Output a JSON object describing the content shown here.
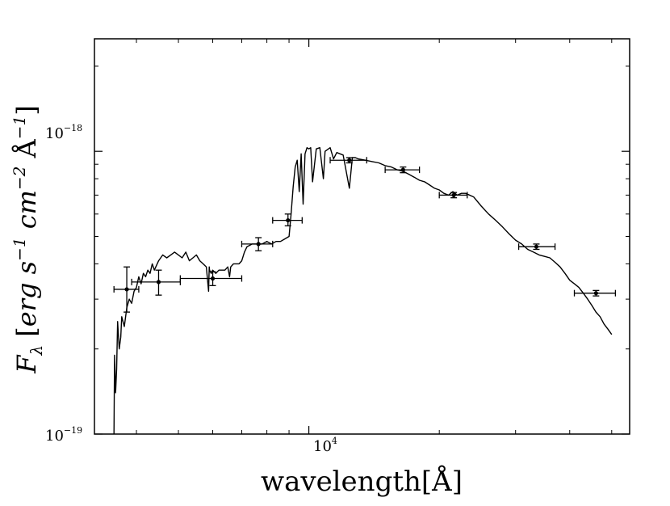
{
  "chart_data": {
    "type": "line",
    "xscale": "log",
    "yscale": "log",
    "xlim": [
      3200,
      55000
    ],
    "ylim": [
      1e-19,
      2.5e-18
    ],
    "xlabel": "wavelength[Å]",
    "ylabel": "F_λ [erg s^{-1} cm^{-2} Å^{-1}]",
    "ylabel_parts": {
      "F": "F",
      "lambda": "λ",
      "open": " [",
      "erg": "erg s",
      "exp1": "−1",
      "cm": " cm",
      "exp2": "−2",
      "A": " Å",
      "exp3": "−1",
      "close": "]"
    },
    "xticks": [
      {
        "base": "10",
        "exp": "4",
        "value": 10000
      }
    ],
    "yticks": [
      {
        "base": "10",
        "exp": "−18",
        "value": 1e-18
      },
      {
        "base": "10",
        "exp": "−19",
        "value": 1e-19
      }
    ],
    "series": [
      {
        "kind": "model-spectrum",
        "x": [
          3550,
          3560,
          3580,
          3600,
          3620,
          3650,
          3680,
          3700,
          3750,
          3800,
          3850,
          3900,
          3950,
          4000,
          4050,
          4100,
          4150,
          4200,
          4250,
          4300,
          4350,
          4400,
          4500,
          4600,
          4700,
          4800,
          4900,
          5000,
          5100,
          5200,
          5300,
          5400,
          5500,
          5600,
          5700,
          5800,
          5870,
          5890,
          5900,
          5950,
          6000,
          6100,
          6200,
          6300,
          6400,
          6500,
          6562,
          6600,
          6700,
          6800,
          6900,
          7000,
          7100,
          7200,
          7400,
          7600,
          7800,
          8000,
          8200,
          8400,
          8600,
          8800,
          9000,
          9100,
          9200,
          9300,
          9400,
          9500,
          9600,
          9700,
          9800,
          9900,
          10000,
          10100,
          10200,
          10400,
          10600,
          10800,
          10900,
          11000,
          11200,
          11400,
          11600,
          11800,
          12000,
          12400,
          12600,
          12800,
          13000,
          13500,
          14000,
          14500,
          15000,
          15500,
          16000,
          16500,
          17000,
          17500,
          18000,
          18500,
          19000,
          19500,
          20000,
          20500,
          21000,
          21500,
          22000,
          22500,
          23000,
          24000,
          25000,
          26000,
          27000,
          28000,
          29000,
          30000,
          31000,
          32000,
          33000,
          34000,
          35000,
          36000,
          37000,
          38000,
          39000,
          40000,
          41000,
          42000,
          43000,
          44000,
          45000,
          46000,
          47000,
          48000,
          49000,
          50000
        ],
        "y": [
          9.5e-20,
          1.9e-19,
          1.4e-19,
          1.7e-19,
          2.5e-19,
          2e-19,
          2.2e-19,
          2.6e-19,
          2.4e-19,
          2.8e-19,
          3e-19,
          2.9e-19,
          3.2e-19,
          3.3e-19,
          3.6e-19,
          3.4e-19,
          3.7e-19,
          3.6e-19,
          3.8e-19,
          3.7e-19,
          4e-19,
          3.8e-19,
          4.1e-19,
          4.3e-19,
          4.2e-19,
          4.3e-19,
          4.4e-19,
          4.3e-19,
          4.2e-19,
          4.4e-19,
          4.1e-19,
          4.2e-19,
          4.3e-19,
          4.1e-19,
          4e-19,
          3.9e-19,
          3.2e-19,
          3.9e-19,
          3.8e-19,
          3.7e-19,
          3.8e-19,
          3.7e-19,
          3.8e-19,
          3.8e-19,
          3.8e-19,
          3.9e-19,
          3.6e-19,
          3.9e-19,
          4e-19,
          4e-19,
          4e-19,
          4.1e-19,
          4.4e-19,
          4.6e-19,
          4.7e-19,
          4.7e-19,
          4.7e-19,
          4.8e-19,
          4.7e-19,
          4.8e-19,
          4.8e-19,
          4.9e-19,
          5e-19,
          6e-19,
          7.5e-19,
          8.8e-19,
          9.3e-19,
          7.2e-19,
          9.8e-19,
          6.5e-19,
          9.8e-19,
          1.03e-18,
          1.02e-18,
          1.03e-18,
          7.8e-19,
          1.02e-18,
          1.03e-18,
          8e-19,
          1e-18,
          1.01e-18,
          1.03e-18,
          9.4e-19,
          9.9e-19,
          9.8e-19,
          9.7e-19,
          7.4e-19,
          9.5e-19,
          9.5e-19,
          9.4e-19,
          9.3e-19,
          9.2e-19,
          9.1e-19,
          8.9e-19,
          8.8e-19,
          8.6e-19,
          8.5e-19,
          8.3e-19,
          8.1e-19,
          7.9e-19,
          7.8e-19,
          7.6e-19,
          7.4e-19,
          7.3e-19,
          7.1e-19,
          7e-19,
          7.2e-19,
          7e-19,
          7.1e-19,
          7.1e-19,
          6.9e-19,
          6.4e-19,
          6e-19,
          5.7e-19,
          5.4e-19,
          5.1e-19,
          4.85e-19,
          4.7e-19,
          4.5e-19,
          4.4e-19,
          4.3e-19,
          4.25e-19,
          4.2e-19,
          4.05e-19,
          3.9e-19,
          3.7e-19,
          3.5e-19,
          3.4e-19,
          3.3e-19,
          3.15e-19,
          3e-19,
          2.85e-19,
          2.7e-19,
          2.6e-19,
          2.45e-19,
          2.35e-19,
          2.25e-19
        ]
      },
      {
        "kind": "photometry",
        "points": [
          {
            "x": 3800,
            "y": 3.25e-19,
            "xerr": [
              3550,
              4050
            ],
            "yerr": [
              2.7e-19,
              3.9e-19
            ]
          },
          {
            "x": 4500,
            "y": 3.45e-19,
            "xerr": [
              3900,
              5050
            ],
            "yerr": [
              3.1e-19,
              3.8e-19
            ]
          },
          {
            "x": 6000,
            "y": 3.55e-19,
            "xerr": [
              5050,
              7000
            ],
            "yerr": [
              3.35e-19,
              3.75e-19
            ]
          },
          {
            "x": 7650,
            "y": 4.7e-19,
            "xerr": [
              7000,
              8250
            ],
            "yerr": [
              4.45e-19,
              4.95e-19
            ]
          },
          {
            "x": 8950,
            "y": 5.7e-19,
            "xerr": [
              8250,
              9650
            ],
            "yerr": [
              5.45e-19,
              6e-19
            ]
          },
          {
            "x": 12400,
            "y": 9.3e-19,
            "xerr": [
              11200,
              13600
            ],
            "yerr": [
              9.1e-19,
              9.5e-19
            ]
          },
          {
            "x": 16500,
            "y": 8.6e-19,
            "xerr": [
              15000,
              18000
            ],
            "yerr": [
              8.4e-19,
              8.8e-19
            ]
          },
          {
            "x": 21600,
            "y": 7e-19,
            "xerr": [
              20000,
              23200
            ],
            "yerr": [
              6.85e-19,
              7.15e-19
            ]
          },
          {
            "x": 33500,
            "y": 4.6e-19,
            "xerr": [
              30500,
              37000
            ],
            "yerr": [
              4.5e-19,
              4.7e-19
            ]
          },
          {
            "x": 46000,
            "y": 3.15e-19,
            "xerr": [
              41000,
              51000
            ],
            "yerr": [
              3.08e-19,
              3.22e-19
            ]
          }
        ]
      }
    ]
  }
}
